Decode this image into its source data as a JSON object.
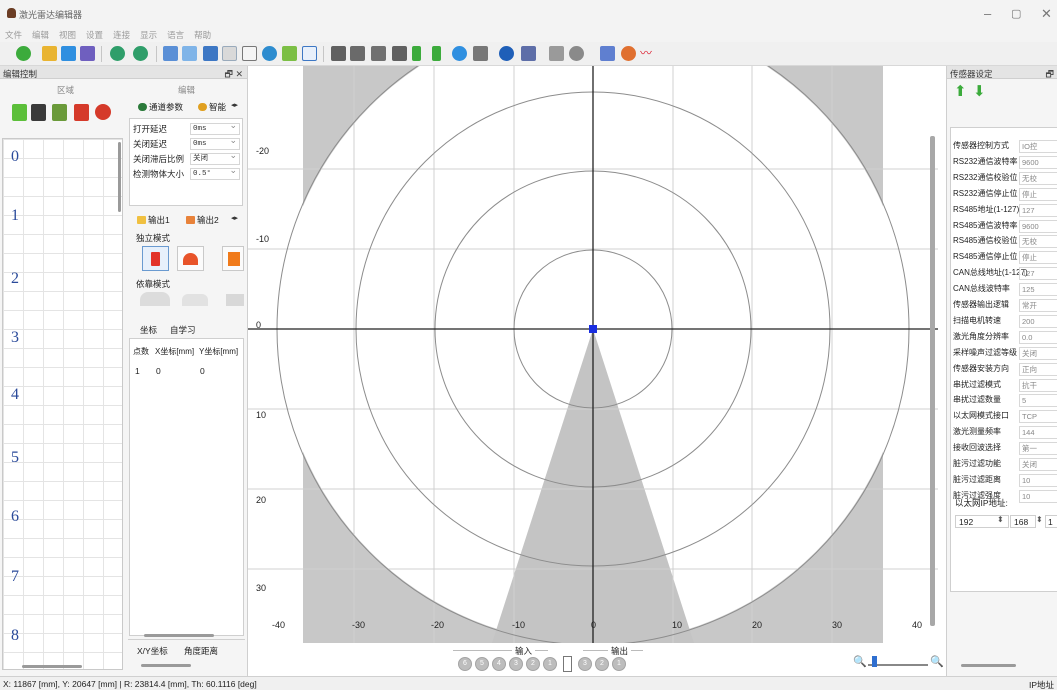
{
  "window": {
    "title": "激光雷达编辑器"
  },
  "menu": [
    "文件",
    "编辑",
    "视图",
    "设置",
    "连接",
    "显示",
    "语言",
    "帮助"
  ],
  "left_panel": {
    "title": "编辑控制",
    "tab_zone": "区域",
    "tab_edit": "编辑",
    "row_labels": [
      "0",
      "1",
      "2",
      "3",
      "4",
      "5",
      "6",
      "7",
      "8"
    ],
    "channel_tabs": [
      "通道参数",
      "智能"
    ],
    "params": [
      {
        "label": "打开延迟",
        "value": "0ms"
      },
      {
        "label": "关闭延迟",
        "value": "0ms"
      },
      {
        "label": "关闭滞后比例",
        "value": "关闭"
      },
      {
        "label": "检测物体大小",
        "value": "0.5°"
      }
    ],
    "output_tabs": [
      "输出1",
      "输出2"
    ],
    "independent_mode": "独立模式",
    "dependent_mode": "依靠模式",
    "coord_tabs": [
      "坐标",
      "自学习"
    ],
    "table_headers": [
      "点数",
      "X坐标[mm]",
      "Y坐标[mm]"
    ],
    "table_rows": [
      [
        "1",
        "0",
        "0"
      ]
    ],
    "bottom_tabs": [
      "X/Y坐标",
      "角度距离"
    ]
  },
  "canvas": {
    "y_labels": [
      "-20",
      "-10",
      "0",
      "10",
      "20",
      "30"
    ],
    "x_labels": [
      "-40",
      "-30",
      "-20",
      "-10",
      "0",
      "10",
      "20",
      "30",
      "40"
    ],
    "input_label": "输入",
    "output_label": "输出",
    "input_buttons": [
      "6",
      "5",
      "4",
      "3",
      "2",
      "1"
    ],
    "output_buttons": [
      "3",
      "2",
      "1"
    ]
  },
  "right_panel": {
    "title": "传感器设定",
    "rows": [
      {
        "label": "传感器控制方式",
        "value": "IO控"
      },
      {
        "label": "RS232通信波特率",
        "value": "9600"
      },
      {
        "label": "RS232通信校验位",
        "value": "无校"
      },
      {
        "label": "RS232通信停止位",
        "value": "停止"
      },
      {
        "label": "RS485地址(1-127)",
        "value": "127"
      },
      {
        "label": "RS485通信波特率",
        "value": "9600"
      },
      {
        "label": "RS485通信校验位",
        "value": "无校"
      },
      {
        "label": "RS485通信停止位",
        "value": "停止"
      },
      {
        "label": "CAN总线地址(1-127)",
        "value": "127"
      },
      {
        "label": "CAN总线波特率",
        "value": "125"
      },
      {
        "label": "传感器输出逻辑",
        "value": "常开"
      },
      {
        "label": "扫描电机转速",
        "value": "200"
      },
      {
        "label": "激光角度分辨率",
        "value": "0.0"
      },
      {
        "label": "采样噪声过滤等级",
        "value": "关闭"
      },
      {
        "label": "传感器安装方向",
        "value": "正向"
      },
      {
        "label": "串扰过滤模式",
        "value": "抗干"
      },
      {
        "label": "串扰过滤数量",
        "value": "5"
      },
      {
        "label": "以太网模式接口",
        "value": "TCP"
      },
      {
        "label": "激光测量频率",
        "value": "144"
      },
      {
        "label": "接收回波选择",
        "value": "第一"
      },
      {
        "label": "脏污过滤功能",
        "value": "关闭"
      },
      {
        "label": "脏污过滤距离",
        "value": "10"
      },
      {
        "label": "脏污过滤强度",
        "value": "10"
      }
    ],
    "ip_label": "以太网IP地址:",
    "ip": [
      "192",
      "168",
      "1"
    ]
  },
  "status": {
    "coords": "X: 11867 [mm], Y: 20647 [mm] | R: 23814.4 [mm], Th: 60.1116 [deg]",
    "right": "IP地址"
  }
}
